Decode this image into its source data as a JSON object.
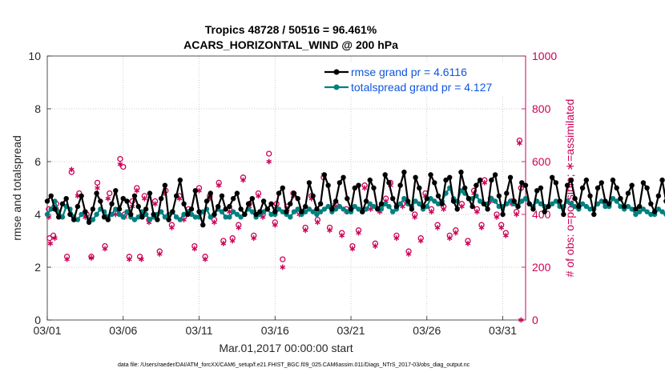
{
  "chart_data": {
    "type": "line",
    "title": "Tropics 48728 / 50516 = 96.461%",
    "subtitle": "ACARS_HORIZONTAL_WIND @ 200 hPa",
    "xlabel": "Mar.01,2017 00:00:00 start",
    "ylabel": "rmse and totalspread",
    "y2label": "# of obs: o=possible; ∗=assimilated",
    "footer": "data file: /Users/raeder/DAI/ATM_forcXX/CAM6_setup/f.e21.FHIST_BGC.f09_025.CAM6assim.011/Diags_NTrS_2017-03/obs_diag_output.nc",
    "xlim": [
      0,
      31.5
    ],
    "ylim": [
      0,
      10
    ],
    "y2lim": [
      0,
      1000
    ],
    "x_ticks": [
      0,
      5,
      10,
      15,
      20,
      25,
      30
    ],
    "x_tick_labels": [
      "03/01",
      "03/06",
      "03/11",
      "03/16",
      "03/21",
      "03/26",
      "03/31"
    ],
    "y_ticks": [
      "0",
      "2",
      "4",
      "6",
      "8",
      "10"
    ],
    "y2_ticks": [
      "0",
      "200",
      "400",
      "600",
      "800",
      "1000"
    ],
    "legend_position": "top-right",
    "colors": {
      "rmse": "#000000",
      "spread": "#008080",
      "obs": "#cc0055",
      "legend_text": "#1155dd",
      "axis": "#262626"
    },
    "series": [
      {
        "name": "rmse grand pr = 4.6116",
        "axis": "left",
        "marker": "dot",
        "x_start": 0.0,
        "x_step": 0.25,
        "values": [
          4.5,
          4.7,
          4.2,
          3.9,
          4.4,
          4.6,
          4.0,
          3.8,
          4.3,
          4.7,
          4.1,
          3.7,
          4.2,
          4.8,
          4.5,
          3.9,
          3.8,
          4.4,
          4.9,
          4.2,
          4.6,
          4.5,
          4.0,
          4.7,
          4.3,
          3.9,
          4.2,
          4.8,
          4.0,
          3.8,
          4.6,
          5.1,
          3.8,
          4.1,
          4.7,
          5.3,
          4.4,
          4.0,
          4.2,
          4.9,
          4.1,
          3.6,
          4.5,
          4.8,
          4.0,
          4.3,
          4.7,
          4.2,
          4.3,
          4.6,
          4.8,
          4.2,
          4.0,
          4.4,
          4.6,
          4.0,
          4.1,
          4.5,
          4.2,
          4.4,
          4.1,
          4.8,
          5.0,
          4.1,
          4.4,
          4.8,
          4.6,
          4.1,
          4.3,
          5.2,
          4.7,
          4.2,
          4.4,
          5.5,
          5.1,
          4.2,
          4.5,
          5.2,
          5.4,
          4.6,
          4.2,
          5.0,
          5.1,
          4.1,
          4.5,
          5.3,
          5.0,
          4.2,
          4.4,
          5.5,
          5.2,
          4.6,
          4.3,
          5.1,
          5.6,
          4.5,
          4.2,
          5.4,
          5.0,
          4.3,
          4.6,
          5.5,
          5.2,
          4.7,
          4.4,
          5.3,
          5.4,
          4.5,
          4.2,
          5.6,
          5.0,
          4.6,
          4.3,
          5.1,
          5.3,
          4.4,
          4.2,
          5.3,
          5.5,
          4.7,
          4.0,
          4.8,
          5.4,
          4.5,
          4.3,
          5.2,
          5.1,
          4.4,
          4.2,
          4.9,
          5.0,
          4.1,
          4.3,
          5.4,
          5.2,
          4.5,
          4.0,
          5.1,
          5.3,
          4.6,
          4.3,
          5.0,
          5.3,
          4.7,
          4.0,
          5.0,
          5.2,
          4.5,
          4.4,
          5.3,
          5.0,
          4.6,
          4.3,
          4.8,
          5.1,
          4.2,
          4.3,
          5.2,
          5.0,
          4.4,
          4.1,
          4.7,
          5.3,
          4.5,
          4.1,
          4.9,
          5.2,
          4.3,
          4.1,
          4.8,
          5.1,
          4.4,
          4.0,
          4.7,
          4.9,
          4.3,
          4.2,
          4.6,
          4.5,
          4.1,
          4.0,
          4.7,
          4.2,
          4.0,
          4.3,
          4.9,
          5.0,
          4.5,
          4.0,
          4.4,
          4.8,
          4.9,
          4.0,
          4.3,
          4.6,
          4.1,
          4.1,
          5.0,
          5.2,
          4.3,
          4.5,
          5.1,
          5.0,
          4.0,
          4.2,
          4.7,
          5.2,
          4.3,
          4.1,
          5.3,
          5.6,
          4.2,
          4.0,
          5.1,
          5.0,
          4.5,
          4.2,
          4.6,
          4.3,
          4.0,
          3.8,
          4.6,
          4.9,
          4.3,
          3.9,
          4.3,
          4.8,
          4.0,
          4.6,
          5.0,
          3.9,
          3.6,
          4.3,
          5.1,
          5.0,
          4.4,
          4.2,
          3.9
        ]
      },
      {
        "name": "totalspread grand pr = 4.127",
        "axis": "left",
        "marker": "dot",
        "x_start": 0.0,
        "x_step": 0.25,
        "values": [
          4.0,
          4.2,
          4.5,
          4.1,
          3.9,
          4.3,
          4.2,
          3.9,
          3.8,
          4.0,
          4.1,
          3.8,
          3.8,
          4.0,
          4.2,
          4.1,
          3.9,
          4.0,
          4.2,
          4.0,
          3.9,
          4.1,
          3.9,
          3.8,
          3.9,
          4.1,
          4.0,
          3.8,
          3.9,
          4.0,
          4.1,
          3.9,
          4.0,
          4.1,
          3.9,
          3.8,
          4.0,
          4.1,
          4.0,
          3.9,
          3.9,
          4.1,
          4.2,
          3.9,
          4.0,
          4.2,
          4.1,
          3.9,
          3.9,
          4.1,
          4.0,
          3.9,
          4.0,
          4.2,
          4.1,
          3.9,
          4.0,
          4.1,
          4.2,
          4.0,
          4.0,
          4.2,
          4.1,
          4.0,
          3.9,
          4.1,
          4.2,
          4.0,
          4.1,
          4.2,
          4.1,
          4.0,
          4.1,
          4.2,
          4.3,
          4.1,
          4.2,
          4.3,
          4.2,
          4.1,
          4.1,
          4.3,
          4.2,
          4.1,
          4.2,
          4.4,
          4.3,
          4.2,
          4.2,
          4.4,
          4.3,
          4.1,
          4.2,
          4.4,
          4.6,
          4.4,
          4.3,
          4.5,
          4.4,
          4.2,
          4.3,
          4.6,
          4.5,
          4.4,
          4.5,
          4.8,
          5.0,
          4.6,
          4.5,
          4.9,
          4.8,
          4.6,
          4.6,
          4.7,
          4.5,
          4.4,
          4.4,
          4.6,
          4.5,
          4.3,
          4.3,
          4.4,
          4.5,
          4.4,
          4.3,
          4.5,
          4.6,
          4.4,
          4.3,
          4.5,
          4.4,
          4.3,
          4.3,
          4.4,
          4.5,
          4.3,
          4.3,
          4.5,
          4.4,
          4.3,
          4.2,
          4.4,
          4.3,
          4.2,
          4.2,
          4.4,
          4.5,
          4.3,
          4.3,
          4.6,
          4.5,
          4.3,
          4.2,
          4.3,
          4.2,
          4.0,
          4.1,
          4.2,
          4.1,
          4.0,
          4.0,
          4.2,
          4.1,
          4.0,
          4.0,
          4.2,
          4.3,
          4.2,
          4.1,
          4.3,
          4.2,
          4.1,
          4.1,
          4.3,
          4.2,
          4.1,
          4.0,
          4.2,
          4.2,
          4.1,
          4.1,
          4.2,
          4.3,
          4.1,
          4.1,
          4.3,
          4.2,
          4.1,
          4.0,
          4.2,
          4.3,
          4.1,
          4.1,
          4.2,
          4.3,
          4.2,
          4.1,
          4.3,
          4.2,
          4.1,
          4.1,
          4.3,
          4.1,
          4.0,
          4.0,
          4.2,
          4.3,
          4.1,
          4.1,
          4.2,
          4.3,
          4.2,
          4.1,
          4.3,
          4.2,
          4.1,
          4.0,
          4.2,
          4.2,
          4.1,
          4.1,
          4.3,
          4.4,
          4.2,
          4.1,
          4.3,
          4.2,
          4.2,
          4.1,
          4.4,
          4.3,
          4.1,
          4.1,
          4.2,
          4.1,
          4.0,
          3.9,
          4.1,
          4.2,
          4.0,
          3.9
        ]
      },
      {
        "name": "possible",
        "axis": "right",
        "marker": "circle",
        "points": [
          [
            0.1,
            420
          ],
          [
            0.15,
            310
          ],
          [
            0.4,
            320
          ],
          [
            0.6,
            440
          ],
          [
            1.3,
            240
          ],
          [
            1.6,
            560
          ],
          [
            2.1,
            480
          ],
          [
            2.6,
            400
          ],
          [
            2.9,
            240
          ],
          [
            3.3,
            520
          ],
          [
            3.8,
            280
          ],
          [
            4.1,
            480
          ],
          [
            4.5,
            410
          ],
          [
            4.8,
            610
          ],
          [
            5.0,
            580
          ],
          [
            5.1,
            400
          ],
          [
            5.4,
            240
          ],
          [
            5.6,
            450
          ],
          [
            5.9,
            500
          ],
          [
            6.1,
            240
          ],
          [
            6.4,
            470
          ],
          [
            6.7,
            380
          ],
          [
            7.1,
            450
          ],
          [
            7.4,
            260
          ],
          [
            7.8,
            490
          ],
          [
            8.2,
            360
          ],
          [
            8.7,
            470
          ],
          [
            9.0,
            390
          ],
          [
            9.3,
            420
          ],
          [
            9.7,
            280
          ],
          [
            10.0,
            500
          ],
          [
            10.4,
            240
          ],
          [
            10.7,
            470
          ],
          [
            11.0,
            380
          ],
          [
            11.3,
            520
          ],
          [
            11.6,
            300
          ],
          [
            12.0,
            420
          ],
          [
            12.2,
            310
          ],
          [
            12.6,
            360
          ],
          [
            12.9,
            540
          ],
          [
            13.3,
            440
          ],
          [
            13.6,
            320
          ],
          [
            13.9,
            480
          ],
          [
            14.2,
            400
          ],
          [
            14.6,
            630
          ],
          [
            15.0,
            370
          ],
          [
            15.1,
            440
          ],
          [
            15.5,
            230
          ],
          [
            15.8,
            430
          ],
          [
            16.2,
            480
          ],
          [
            16.6,
            410
          ],
          [
            17.0,
            350
          ],
          [
            17.4,
            470
          ],
          [
            17.8,
            380
          ],
          [
            18.2,
            540
          ],
          [
            18.6,
            350
          ],
          [
            19.0,
            440
          ],
          [
            19.4,
            330
          ],
          [
            19.7,
            420
          ],
          [
            20.1,
            280
          ],
          [
            20.5,
            340
          ],
          [
            20.9,
            510
          ],
          [
            21.3,
            430
          ],
          [
            21.6,
            290
          ],
          [
            21.9,
            420
          ],
          [
            22.3,
            460
          ],
          [
            22.6,
            520
          ],
          [
            23.0,
            320
          ],
          [
            23.4,
            440
          ],
          [
            23.8,
            260
          ],
          [
            24.2,
            400
          ],
          [
            24.6,
            310
          ],
          [
            24.9,
            480
          ],
          [
            25.3,
            420
          ],
          [
            25.7,
            360
          ],
          [
            26.1,
            430
          ],
          [
            26.5,
            320
          ],
          [
            26.9,
            340
          ],
          [
            27.3,
            440
          ],
          [
            27.7,
            300
          ],
          [
            28.1,
            490
          ],
          [
            28.3,
            420
          ],
          [
            28.6,
            360
          ],
          [
            28.8,
            530
          ],
          [
            29.2,
            460
          ],
          [
            29.6,
            400
          ],
          [
            29.9,
            360
          ],
          [
            30.2,
            330
          ],
          [
            30.6,
            450
          ],
          [
            30.9,
            410
          ],
          [
            31.1,
            680
          ],
          [
            31.2,
            500
          ]
        ]
      },
      {
        "name": "assimilated",
        "axis": "right",
        "marker": "asterisk",
        "points": [
          [
            0.1,
            390
          ],
          [
            0.2,
            290
          ],
          [
            0.5,
            310
          ],
          [
            0.6,
            420
          ],
          [
            1.3,
            230
          ],
          [
            1.6,
            570
          ],
          [
            2.0,
            470
          ],
          [
            2.5,
            390
          ],
          [
            2.9,
            235
          ],
          [
            3.3,
            500
          ],
          [
            3.8,
            270
          ],
          [
            4.0,
            460
          ],
          [
            4.5,
            400
          ],
          [
            4.8,
            590
          ],
          [
            5.1,
            390
          ],
          [
            5.4,
            230
          ],
          [
            5.6,
            430
          ],
          [
            5.9,
            490
          ],
          [
            6.2,
            230
          ],
          [
            6.4,
            460
          ],
          [
            6.7,
            370
          ],
          [
            7.1,
            440
          ],
          [
            7.4,
            250
          ],
          [
            7.7,
            480
          ],
          [
            8.2,
            350
          ],
          [
            8.7,
            460
          ],
          [
            9.0,
            380
          ],
          [
            9.3,
            410
          ],
          [
            9.7,
            270
          ],
          [
            10.0,
            490
          ],
          [
            10.4,
            230
          ],
          [
            10.7,
            460
          ],
          [
            11.0,
            370
          ],
          [
            11.3,
            510
          ],
          [
            11.6,
            290
          ],
          [
            12.0,
            410
          ],
          [
            12.2,
            300
          ],
          [
            12.6,
            350
          ],
          [
            12.9,
            530
          ],
          [
            13.3,
            430
          ],
          [
            13.6,
            310
          ],
          [
            13.9,
            470
          ],
          [
            14.2,
            390
          ],
          [
            14.6,
            600
          ],
          [
            15.0,
            360
          ],
          [
            15.1,
            430
          ],
          [
            15.5,
            200
          ],
          [
            15.8,
            420
          ],
          [
            16.2,
            470
          ],
          [
            16.6,
            400
          ],
          [
            17.0,
            340
          ],
          [
            17.4,
            460
          ],
          [
            17.8,
            370
          ],
          [
            18.2,
            550
          ],
          [
            18.6,
            340
          ],
          [
            19.0,
            430
          ],
          [
            19.4,
            320
          ],
          [
            19.7,
            410
          ],
          [
            20.1,
            270
          ],
          [
            20.5,
            330
          ],
          [
            20.9,
            500
          ],
          [
            21.3,
            420
          ],
          [
            21.6,
            280
          ],
          [
            21.9,
            410
          ],
          [
            22.3,
            450
          ],
          [
            22.6,
            510
          ],
          [
            23.0,
            310
          ],
          [
            23.4,
            430
          ],
          [
            23.8,
            250
          ],
          [
            24.2,
            390
          ],
          [
            24.6,
            300
          ],
          [
            24.9,
            470
          ],
          [
            25.3,
            410
          ],
          [
            25.7,
            350
          ],
          [
            26.1,
            420
          ],
          [
            26.5,
            310
          ],
          [
            26.9,
            330
          ],
          [
            27.3,
            430
          ],
          [
            27.7,
            290
          ],
          [
            28.1,
            480
          ],
          [
            28.3,
            410
          ],
          [
            28.6,
            350
          ],
          [
            28.8,
            520
          ],
          [
            29.2,
            450
          ],
          [
            29.6,
            390
          ],
          [
            29.9,
            350
          ],
          [
            30.2,
            320
          ],
          [
            30.6,
            440
          ],
          [
            30.9,
            400
          ],
          [
            31.1,
            670
          ],
          [
            31.2,
            0
          ]
        ]
      }
    ]
  }
}
